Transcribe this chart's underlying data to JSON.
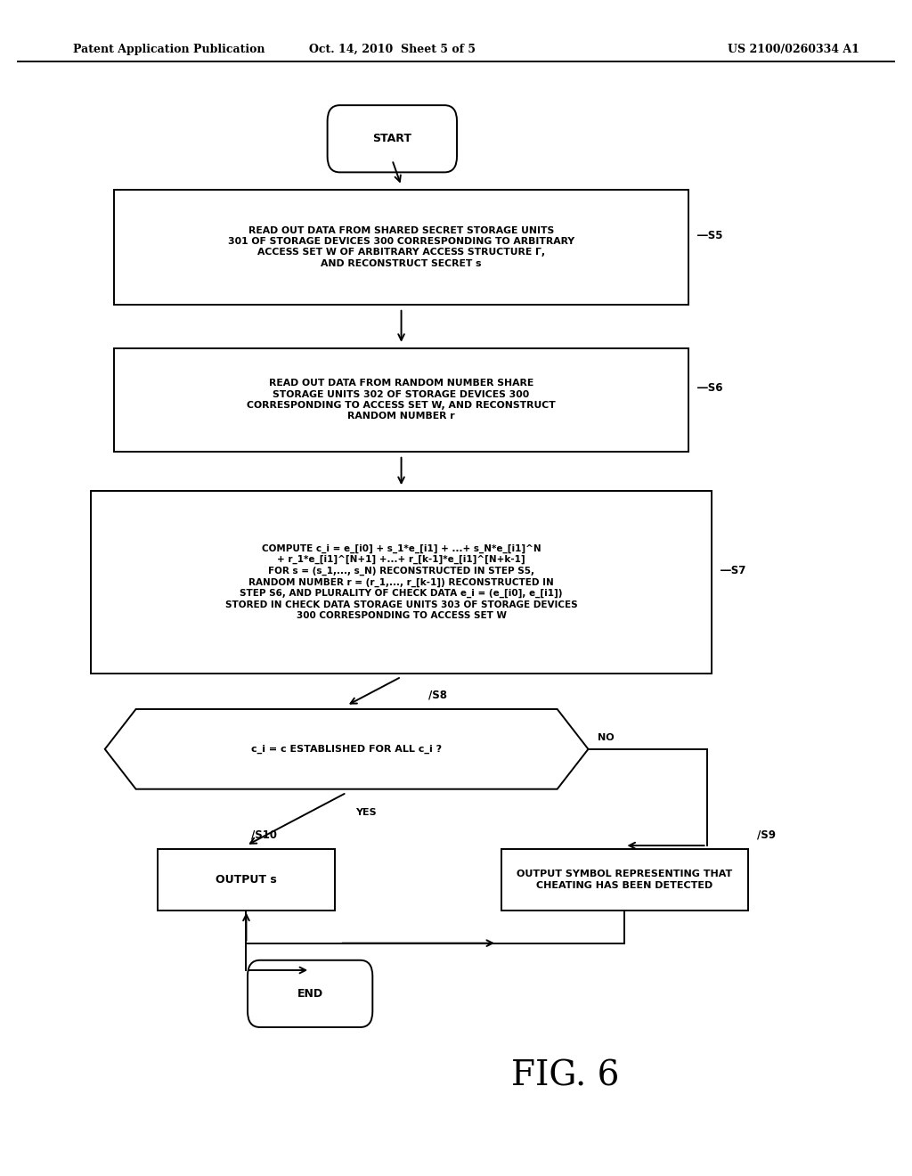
{
  "background_color": "#ffffff",
  "header_left": "Patent Application Publication",
  "header_center": "Oct. 14, 2010  Sheet 5 of 5",
  "header_right": "US 2100/0260334 A1",
  "figure_label": "FIG. 6",
  "start_label": "START",
  "end_label": "END",
  "S5_text": "READ OUT DATA FROM SHARED SECRET STORAGE UNITS\n301 OF STORAGE DEVICES 300 CORRESPONDING TO ARBITRARY\nACCESS SET W OF ARBITRARY ACCESS STRUCTURE Γ,\nAND RECONSTRUCT SECRET s",
  "S6_text": "READ OUT DATA FROM RANDOM NUMBER SHARE\nSTORAGE UNITS 302 OF STORAGE DEVICES 300\nCORRESPONDING TO ACCESS SET W, AND RECONSTRUCT\nRANDOM NUMBER r",
  "S7_text": "COMPUTE c_i = e_[i0] + s_1*e_[i1] + ...+ s_N*e_[i1]^N\n+ r_1*e_[i1]^[N+1] +...+ r_[k-1]*e_[i1]^[N+k-1]\nFOR s = (s_1,..., s_N) RECONSTRUCTED IN STEP S5,\nRANDOM NUMBER r = (r_1,..., r_[k-1]) RECONSTRUCTED IN\nSTEP S6, AND PLURALITY OF CHECK DATA e_i = (e_[i0], e_[i1])\nSTORED IN CHECK DATA STORAGE UNITS 303 OF STORAGE DEVICES\n300 CORRESPONDING TO ACCESS SET W",
  "S8_text": "c_i = c ESTABLISHED FOR ALL c_i ?",
  "S9_text": "OUTPUT SYMBOL REPRESENTING THAT\nCHEATING HAS BEEN DETECTED",
  "S10_text": "OUTPUT s"
}
